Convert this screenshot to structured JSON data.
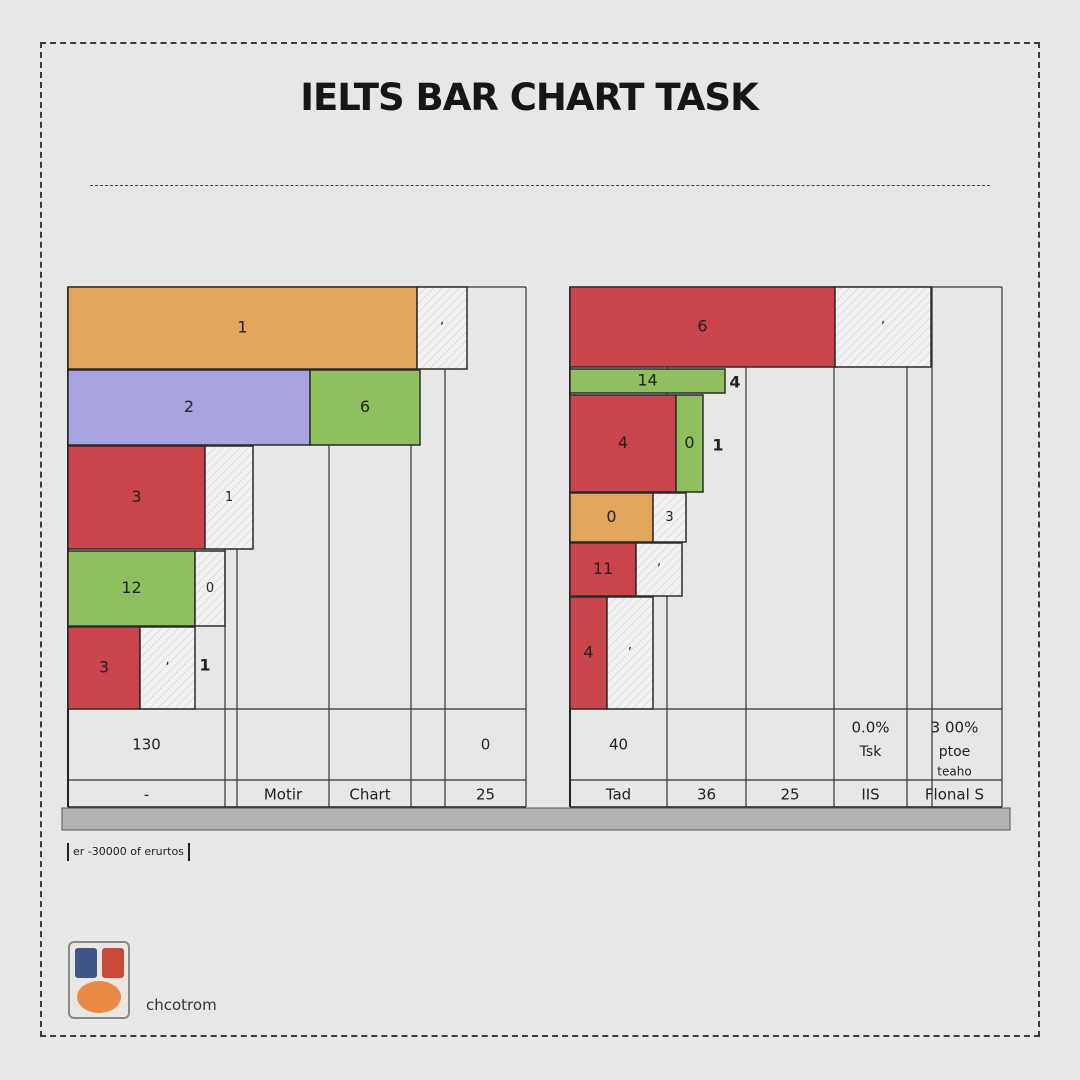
{
  "page": {
    "title": "IELTS BAR CHART TASK"
  },
  "chart_data": [
    {
      "type": "bar",
      "orientation": "horizontal",
      "stacked": true,
      "rows": [
        {
          "segments": [
            {
              "value": 1,
              "label": "1",
              "color": "#e3a55c"
            },
            {
              "value": null,
              "label": "ʼ",
              "color": "#f1f1f1"
            }
          ]
        },
        {
          "segments": [
            {
              "value": 2,
              "label": "2",
              "color": "#a7a3df"
            },
            {
              "value": 6,
              "label": "6",
              "color": "#8fbf5e"
            }
          ]
        },
        {
          "segments": [
            {
              "value": 3,
              "label": "3",
              "color": "#c9444b"
            },
            {
              "value": 1,
              "label": "1",
              "color": "#f1f1f1"
            }
          ]
        },
        {
          "segments": [
            {
              "value": 12,
              "label": "12",
              "color": "#8fbf5e"
            },
            {
              "value": 0,
              "label": "0",
              "color": "#f1f1f1"
            }
          ]
        },
        {
          "segments": [
            {
              "value": 3,
              "label": "3",
              "color": "#c9444b"
            },
            {
              "value": null,
              "label": "ʼ",
              "color": "#f1f1f1"
            }
          ],
          "outside_label": "1"
        }
      ],
      "table": {
        "top_row": [
          "130",
          "",
          "",
          "",
          "0"
        ],
        "bottom_row": [
          "-",
          "",
          "Motir",
          "Chart",
          "",
          "25"
        ]
      }
    },
    {
      "type": "bar",
      "orientation": "horizontal",
      "stacked": true,
      "rows": [
        {
          "segments": [
            {
              "value": 6,
              "label": "6",
              "color": "#c9444b"
            },
            {
              "value": null,
              "label": "ʼ",
              "color": "#f1f1f1"
            }
          ]
        },
        {
          "segments": [
            {
              "value": 14,
              "label": "14",
              "color": "#8fbf5e"
            }
          ],
          "outside_label": "4"
        },
        {
          "segments": [
            {
              "value": 4,
              "label": "4",
              "color": "#c9444b"
            },
            {
              "value": 0,
              "label": "0",
              "color": "#8fbf5e"
            }
          ],
          "outside_label": "1"
        },
        {
          "segments": [
            {
              "value": 0,
              "label": "0",
              "color": "#e3a55c"
            },
            {
              "value": 3,
              "label": "3",
              "color": "#f1f1f1"
            }
          ]
        },
        {
          "segments": [
            {
              "value": 11,
              "label": "11",
              "color": "#c9444b"
            },
            {
              "value": null,
              "label": "ʼ",
              "color": "#f1f1f1"
            }
          ]
        },
        {
          "segments": [
            {
              "value": 4,
              "label": "4",
              "color": "#c9444b"
            },
            {
              "value": null,
              "label": "ʼ",
              "color": "#f1f1f1"
            }
          ]
        }
      ],
      "table": {
        "top_row": [
          "40",
          "",
          "",
          "0.0%",
          "3 00%"
        ],
        "top_row_sub": [
          "",
          "",
          "",
          "Tsk",
          "ptoe"
        ],
        "top_row_sub2": [
          "",
          "",
          "",
          "",
          "teaho"
        ],
        "bottom_row": [
          "Tad",
          "36",
          "25",
          "IIS",
          "Flonal S"
        ]
      }
    }
  ],
  "footer": {
    "note": "er -30000 of erurtos",
    "brand": "chcotrom"
  }
}
